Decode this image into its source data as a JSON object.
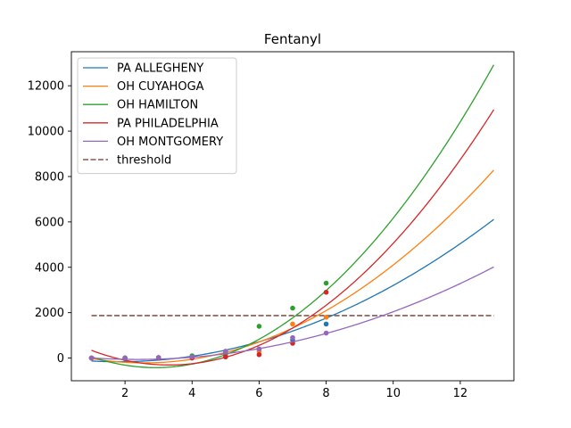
{
  "chart_data": {
    "type": "line",
    "title": "Fentanyl",
    "xlabel": "",
    "ylabel": "",
    "xlim": [
      0.4,
      13.6
    ],
    "ylim": [
      -1000,
      13500
    ],
    "xticks": [
      2,
      4,
      6,
      8,
      10,
      12
    ],
    "yticks": [
      0,
      2000,
      4000,
      6000,
      8000,
      10000,
      12000
    ],
    "grid": false,
    "legend_position": "top-left",
    "series": [
      {
        "name": "PA ALLEGHENY",
        "color": "#1f77b4",
        "fit_coefficients": [
          0,
          -180,
          50
        ],
        "points": [
          [
            1,
            0
          ],
          [
            2,
            10
          ],
          [
            3,
            20
          ],
          [
            4,
            50
          ],
          [
            5,
            250
          ],
          [
            6,
            400
          ],
          [
            7,
            800
          ],
          [
            8,
            1500
          ]
        ]
      },
      {
        "name": "OH CUYAHOGA",
        "color": "#ff7f0e",
        "fit_coefficients": [
          300,
          -400,
          78
        ],
        "points": [
          [
            1,
            0
          ],
          [
            2,
            -30
          ],
          [
            3,
            20
          ],
          [
            4,
            60
          ],
          [
            5,
            150
          ],
          [
            6,
            300
          ],
          [
            7,
            1500
          ],
          [
            8,
            1800
          ]
        ]
      },
      {
        "name": "OH HAMILTON",
        "color": "#2ca02c",
        "fit_coefficients": [
          690,
          -763.3,
          131.1
        ],
        "points": [
          [
            1,
            0
          ],
          [
            2,
            0
          ],
          [
            3,
            20
          ],
          [
            4,
            100
          ],
          [
            5,
            200
          ],
          [
            6,
            1400
          ],
          [
            7,
            2200
          ],
          [
            8,
            3300
          ]
        ]
      },
      {
        "name": "PA PHILADELPHIA",
        "color": "#d62728",
        "fit_coefficients": [
          1015,
          -796,
          120
        ],
        "points": [
          [
            1,
            0
          ],
          [
            2,
            -30
          ],
          [
            3,
            0
          ],
          [
            4,
            0
          ],
          [
            5,
            50
          ],
          [
            6,
            150
          ],
          [
            7,
            650
          ],
          [
            8,
            2900
          ]
        ]
      },
      {
        "name": "OH MONTGOMERY",
        "color": "#9467bd",
        "fit_coefficients": [
          140,
          -170,
          36
        ],
        "points": [
          [
            1,
            0
          ],
          [
            2,
            0
          ],
          [
            3,
            20
          ],
          [
            4,
            50
          ],
          [
            5,
            300
          ],
          [
            6,
            400
          ],
          [
            7,
            900
          ],
          [
            8,
            1100
          ]
        ]
      }
    ],
    "threshold": {
      "name": "threshold",
      "value": 1870,
      "x_range": [
        1,
        13
      ],
      "color": "#8c564b"
    }
  }
}
